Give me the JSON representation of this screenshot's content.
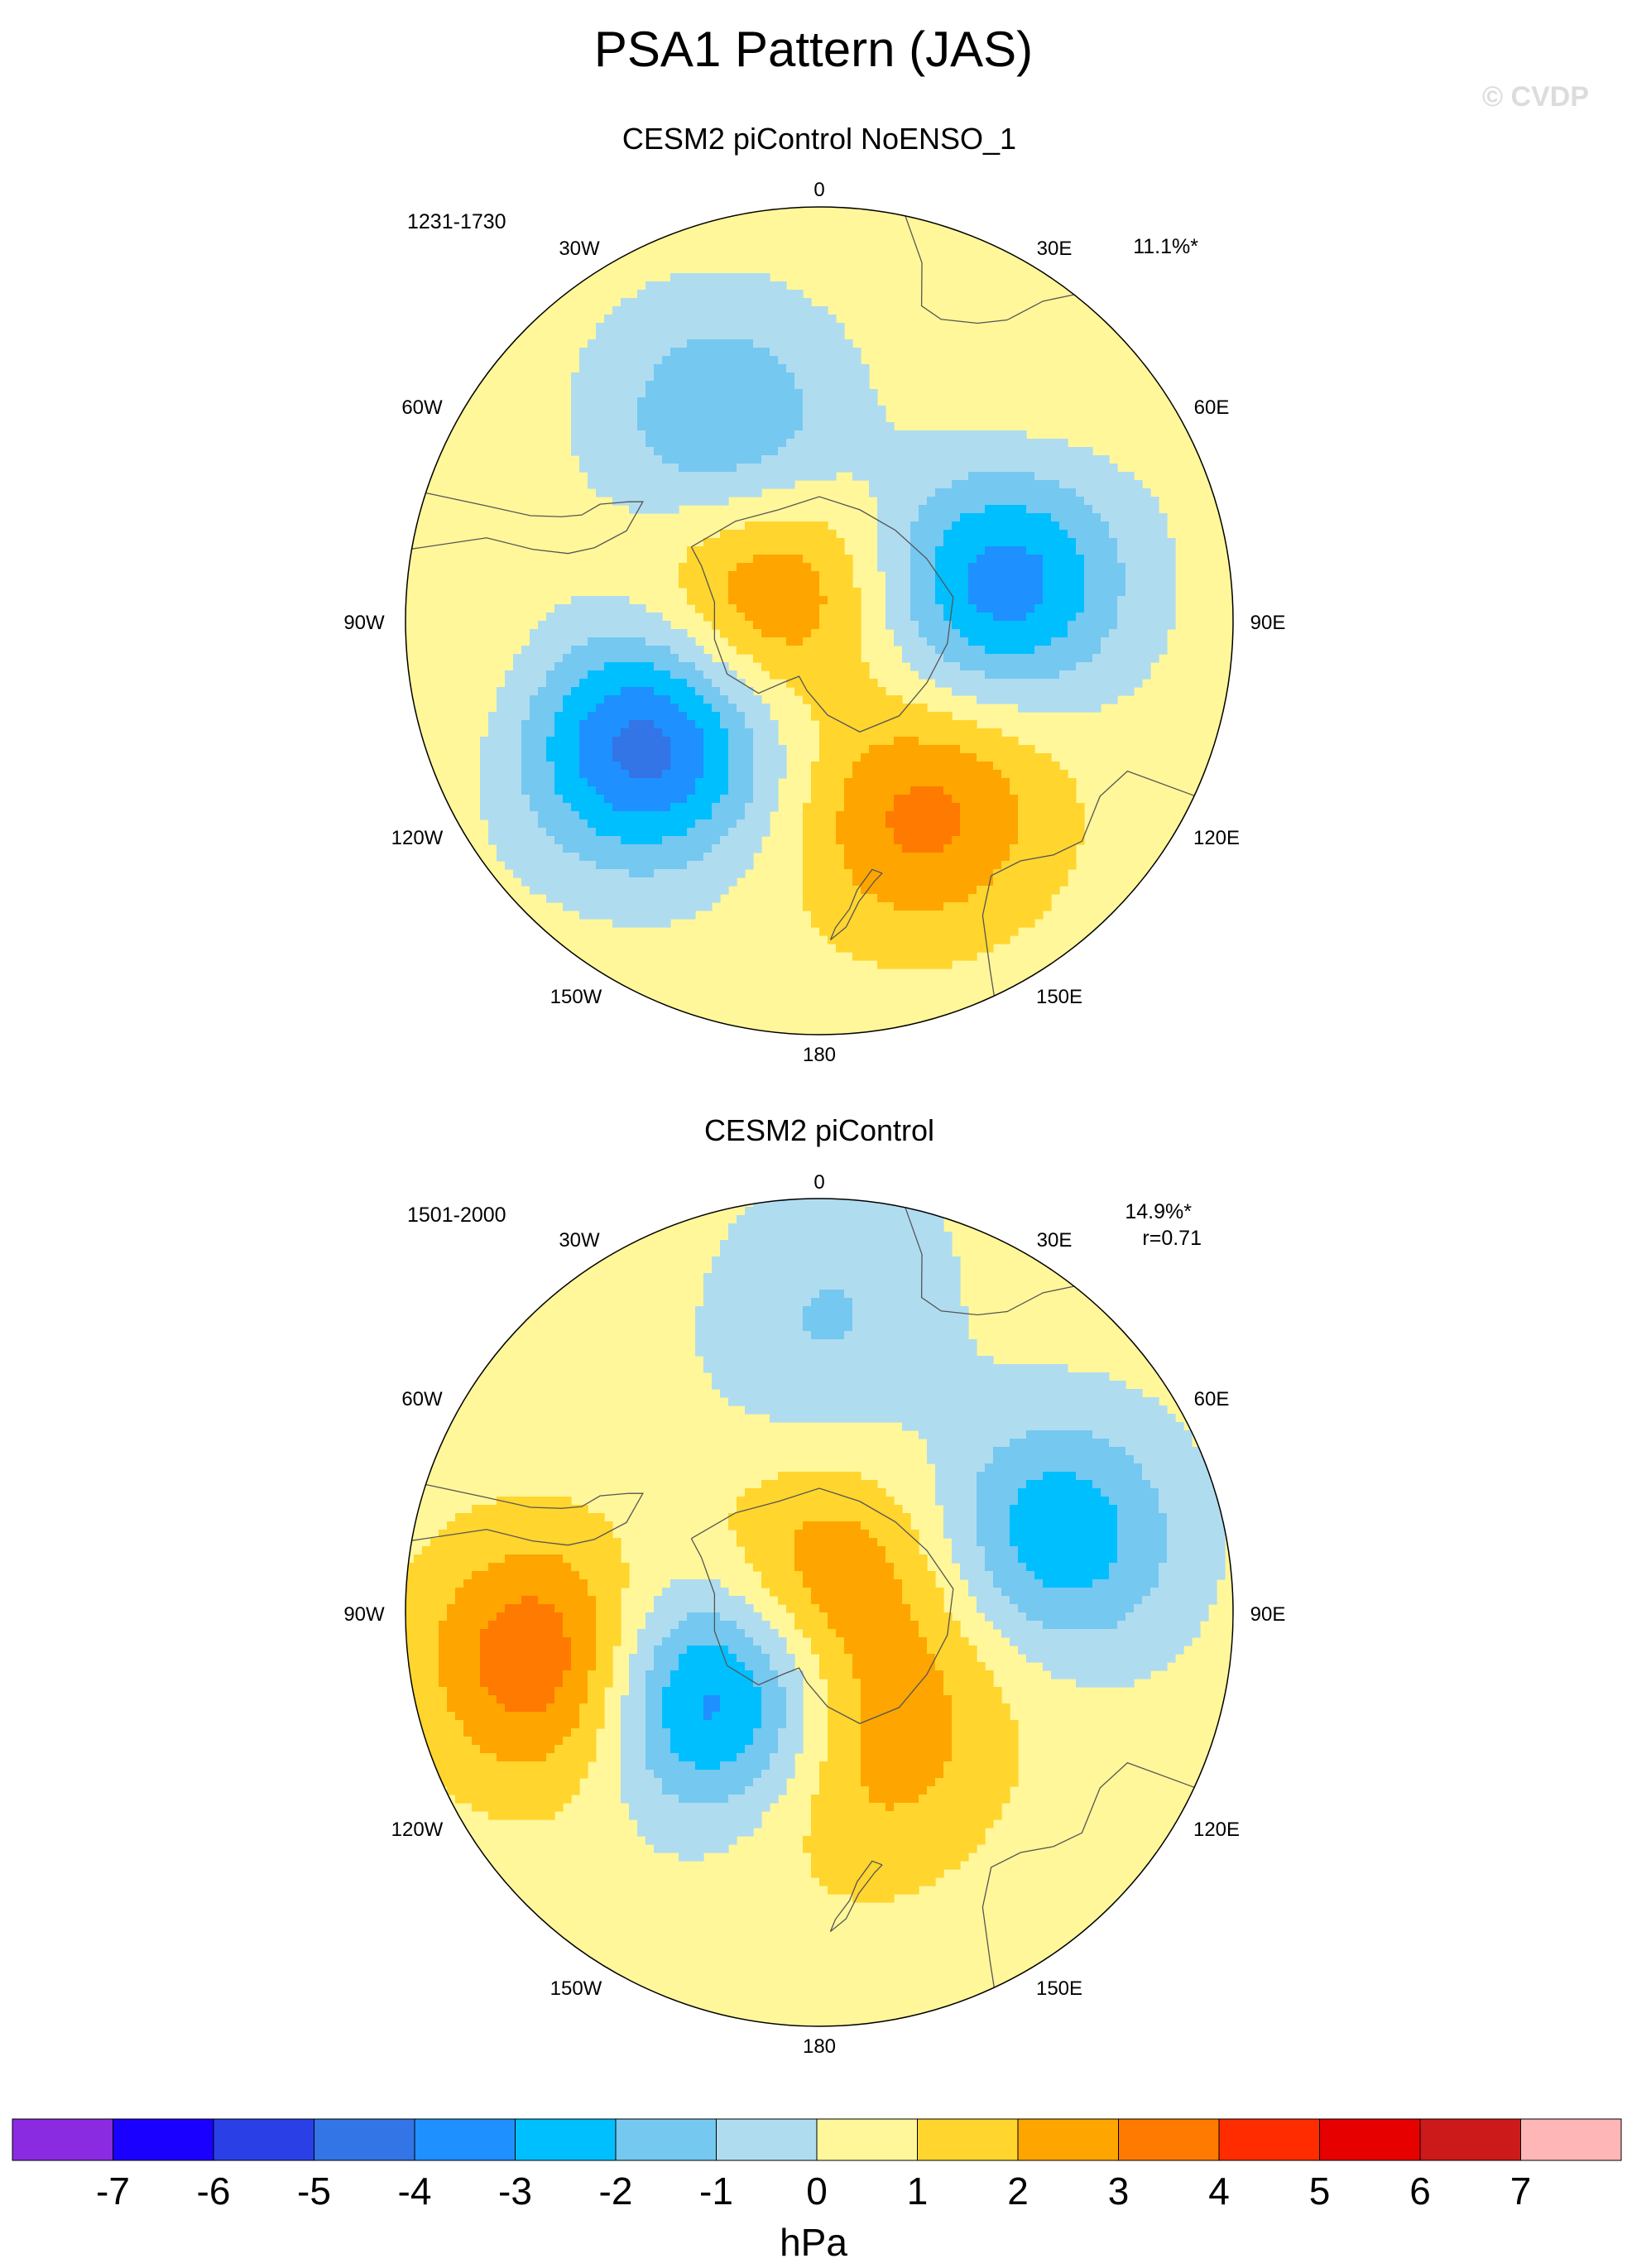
{
  "figure": {
    "title": "PSA1 Pattern (JAS)",
    "watermark": "© CVDP"
  },
  "panels": [
    {
      "subtitle": "CESM2 piControl NoENSO_1",
      "years": "1231-1730",
      "pct_variance": "11.1%*",
      "pattern_correlation": "",
      "blobs": [
        {
          "lon": -28,
          "colat": 40,
          "value": -1.5
        },
        {
          "lon": -22,
          "colat": 32,
          "value": -1.2
        },
        {
          "lon": 78,
          "colat": 34,
          "value": -2.5
        },
        {
          "lon": 80,
          "colat": 28,
          "value": -1.6
        },
        {
          "lon": -60,
          "colat": 10,
          "value": 2.8
        },
        {
          "lon": -128,
          "colat": 34,
          "value": -3.6
        },
        {
          "lon": -120,
          "colat": 42,
          "value": -1.6
        },
        {
          "lon": 158,
          "colat": 38,
          "value": 1.9
        },
        {
          "lon": 140,
          "colat": 38,
          "value": 1.2
        },
        {
          "lon": -100,
          "colat": 60,
          "value": 0.6
        },
        {
          "lon": 40,
          "colat": 58,
          "value": 0.5
        }
      ]
    },
    {
      "subtitle": "CESM2 piControl",
      "years": "1501-2000",
      "pct_variance": "14.9%*",
      "pattern_correlation": "r=0.71",
      "blobs": [
        {
          "lon": 0,
          "colat": 45,
          "value": -1.2
        },
        {
          "lon": 5,
          "colat": 62,
          "value": -0.6
        },
        {
          "lon": 70,
          "colat": 42,
          "value": -2.4
        },
        {
          "lon": 78,
          "colat": 45,
          "value": -0.9
        },
        {
          "lon": -130,
          "colat": 22,
          "value": -3.6
        },
        {
          "lon": -120,
          "colat": 30,
          "value": -1.2
        },
        {
          "lon": 10,
          "colat": 6,
          "value": 2.4
        },
        {
          "lon": -96,
          "colat": 48,
          "value": 2.5
        },
        {
          "lon": -110,
          "colat": 45,
          "value": 1.6
        },
        {
          "lon": 168,
          "colat": 30,
          "value": 1.4
        },
        {
          "lon": 130,
          "colat": 22,
          "value": 1.2
        }
      ]
    }
  ],
  "longitude_labels": {
    "lon_0": "0",
    "lon_30E": "30E",
    "lon_60E": "60E",
    "lon_90E": "90E",
    "lon_120E": "120E",
    "lon_150E": "150E",
    "lon_180": "180",
    "lon_150W": "150W",
    "lon_120W": "120W",
    "lon_90W": "90W",
    "lon_60W": "60W",
    "lon_30W": "30W"
  },
  "colorbar": {
    "unit": "hPa",
    "levels": [
      "-7",
      "-6",
      "-5",
      "-4",
      "-3",
      "-2",
      "-1",
      "0",
      "1",
      "2",
      "3",
      "4",
      "5",
      "6",
      "7"
    ],
    "level_values": [
      -7,
      -6,
      -5,
      -4,
      -3,
      -2,
      -1,
      0,
      1,
      2,
      3,
      4,
      5,
      6,
      7
    ],
    "colors": [
      "#8a2be2",
      "#1a00ff",
      "#2b3fe6",
      "#3374e6",
      "#1e90ff",
      "#00bfff",
      "#75c8f0",
      "#b0dcf0",
      "#fff79a",
      "#ffd52e",
      "#ffa500",
      "#ff7a00",
      "#ff2c00",
      "#e60000",
      "#cc1a1a",
      "#ffb6b6"
    ]
  },
  "colors": {
    "coastline": "#555555",
    "map_border": "#000000"
  }
}
